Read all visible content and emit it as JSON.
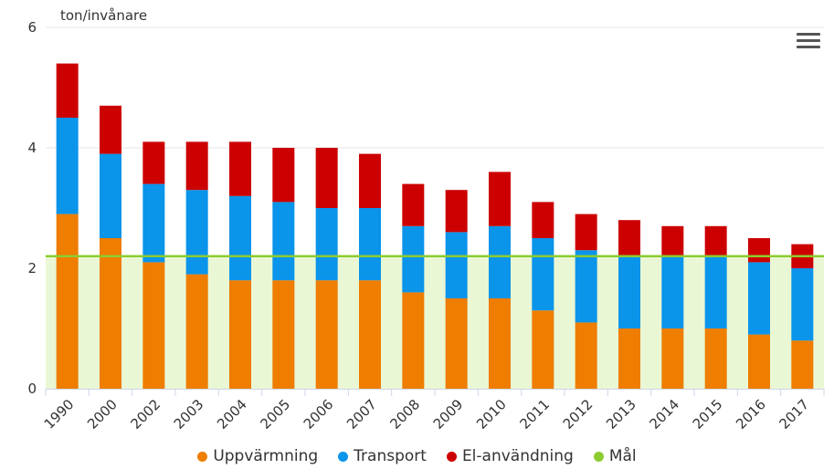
{
  "chart_data": {
    "type": "bar",
    "stacked": true,
    "ylabel": "ton/invånare",
    "ylim": [
      0,
      6
    ],
    "yticks": [
      0,
      2,
      4,
      6
    ],
    "grid": true,
    "legend_position": "bottom",
    "categories": [
      "1990",
      "2000",
      "2002",
      "2003",
      "2004",
      "2005",
      "2006",
      "2007",
      "2008",
      "2009",
      "2010",
      "2011",
      "2012",
      "2013",
      "2014",
      "2015",
      "2016",
      "2017"
    ],
    "series": [
      {
        "name": "Uppvärmning",
        "color": "#ee7d00",
        "values": [
          2.9,
          2.5,
          2.1,
          1.9,
          1.8,
          1.8,
          1.8,
          1.8,
          1.6,
          1.5,
          1.5,
          1.3,
          1.1,
          1.0,
          1.0,
          1.0,
          0.9,
          0.8
        ]
      },
      {
        "name": "Transport",
        "color": "#0a94ea",
        "values": [
          1.6,
          1.4,
          1.3,
          1.4,
          1.4,
          1.3,
          1.2,
          1.2,
          1.1,
          1.1,
          1.2,
          1.2,
          1.2,
          1.2,
          1.2,
          1.2,
          1.2,
          1.2
        ]
      },
      {
        "name": "El-användning",
        "color": "#cc0000",
        "values": [
          0.9,
          0.8,
          0.7,
          0.8,
          0.9,
          0.9,
          1.0,
          0.9,
          0.7,
          0.7,
          0.9,
          0.6,
          0.6,
          0.6,
          0.5,
          0.5,
          0.4,
          0.4
        ]
      }
    ],
    "goal": {
      "name": "Mål",
      "value": 2.2,
      "color": "#8ccc30",
      "fill": "#eaf7d4"
    }
  },
  "menu_icon": "hamburger-menu-icon"
}
